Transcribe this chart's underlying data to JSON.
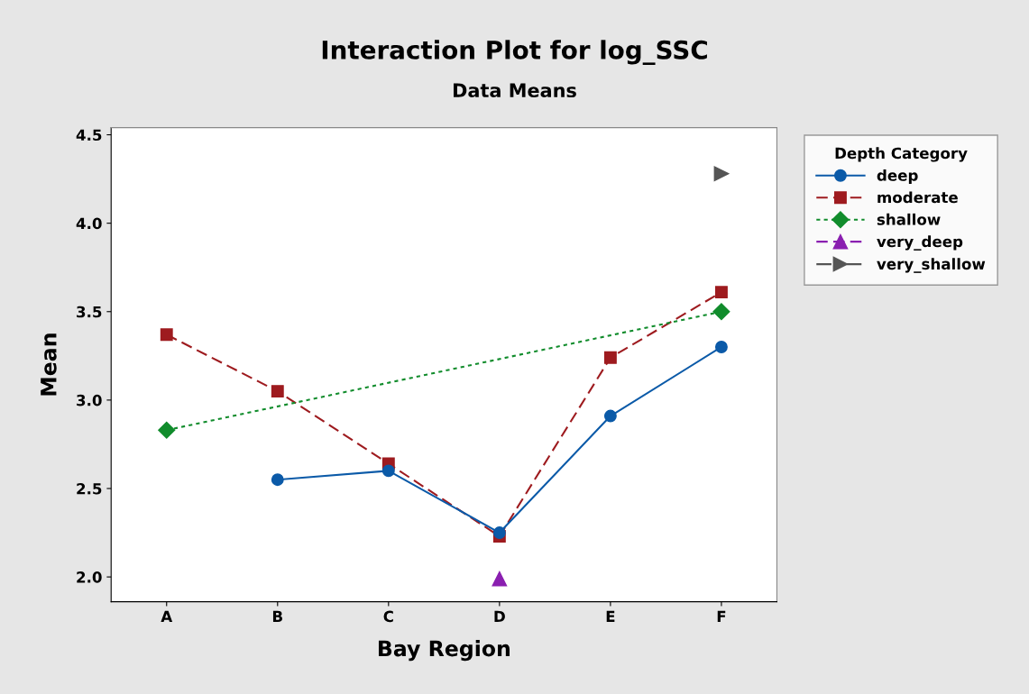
{
  "chart_data": {
    "type": "line",
    "title": "Interaction Plot for log_SSC",
    "subtitle": "Data Means",
    "xlabel": "Bay Region",
    "ylabel": "Mean",
    "legend_title": "Depth Category",
    "legend": "top right",
    "grid": false,
    "categories": [
      "A",
      "B",
      "C",
      "D",
      "E",
      "F"
    ],
    "ylim": [
      1.86,
      4.54
    ],
    "yticks": [
      {
        "value": 2.0,
        "label": "2.0"
      },
      {
        "value": 2.5,
        "label": "2.5"
      },
      {
        "value": 3.0,
        "label": "3.0"
      },
      {
        "value": 3.5,
        "label": "3.5"
      },
      {
        "value": 4.0,
        "label": "4.0"
      },
      {
        "value": 4.5,
        "label": "4.5"
      }
    ],
    "series": [
      {
        "name": "deep",
        "color": "#0b5aa8",
        "marker": "circle",
        "line_style": "solid",
        "values": [
          null,
          2.55,
          2.6,
          2.25,
          2.91,
          3.3
        ]
      },
      {
        "name": "moderate",
        "color": "#9e1b1f",
        "marker": "square",
        "line_style": "dashed",
        "values": [
          3.37,
          3.05,
          2.64,
          2.23,
          3.24,
          3.61
        ]
      },
      {
        "name": "shallow",
        "color": "#118c2c",
        "marker": "diamond",
        "line_style": "dotted",
        "values": [
          2.83,
          null,
          null,
          null,
          null,
          3.5
        ]
      },
      {
        "name": "very_deep",
        "color": "#8a1fb0",
        "marker": "triangle",
        "line_style": "dashed",
        "values": [
          null,
          null,
          null,
          1.99,
          null,
          null
        ]
      },
      {
        "name": "very_shallow",
        "color": "#555555",
        "marker": "triangle_right",
        "line_style": "dashdot",
        "values": [
          null,
          null,
          null,
          null,
          null,
          4.28
        ]
      }
    ]
  }
}
